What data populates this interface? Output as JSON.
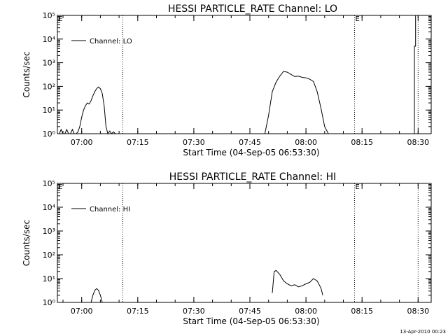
{
  "chart_data": [
    {
      "type": "line",
      "title": "HESSI PARTICLE_RATE Channel: LO",
      "xlabel": "Start Time (04-Sep-05 06:53:30)",
      "ylabel": "Counts/sec",
      "yscale": "log",
      "ylim": [
        1,
        100000
      ],
      "xlim_minutes_after_start": [
        0,
        100
      ],
      "x_ticks": [
        "07:00",
        "07:15",
        "07:30",
        "07:45",
        "08:00",
        "08:15",
        "08:30"
      ],
      "y_ticks": [
        "10⁰",
        "10¹",
        "10²",
        "10³",
        "10⁴",
        "10⁵"
      ],
      "legend": {
        "position": "top-left",
        "entries": [
          "Channel: LO"
        ]
      },
      "markers": [
        "E"
      ],
      "dotted_verticals_time": [
        "07:11",
        "08:13",
        "08:30"
      ],
      "series": [
        {
          "name": "Channel: LO",
          "segments": [
            {
              "time": [
                "06:54:00",
                "06:54:30",
                "06:55:00",
                "06:55:30",
                "06:56:00",
                "06:56:30",
                "06:57:00",
                "06:57:30",
                "06:58:00",
                "06:58:30",
                "06:59:00",
                "06:59:30",
                "07:00:00",
                "07:00:30",
                "07:01:00",
                "07:01:30",
                "07:02:00",
                "07:02:30",
                "07:03:00",
                "07:03:30",
                "07:04:00",
                "07:04:30",
                "07:05:00",
                "07:05:30",
                "07:06:00",
                "07:06:30",
                "07:07:00",
                "07:07:30",
                "07:08:00",
                "07:08:30",
                "07:09:00"
              ],
              "counts": [
                1,
                1.5,
                1,
                1,
                1.5,
                1,
                1,
                1.5,
                1,
                1,
                1.2,
                2,
                5,
                10,
                15,
                20,
                18,
                25,
                40,
                60,
                80,
                95,
                80,
                50,
                15,
                2,
                1,
                1.3,
                1,
                1.2,
                1
              ]
            },
            {
              "time": [
                "07:49:00",
                "07:50:00",
                "07:51:00",
                "07:52:00",
                "07:53:00",
                "07:54:00",
                "07:55:00",
                "07:56:00",
                "07:57:00",
                "07:58:00",
                "07:59:00",
                "08:00:00",
                "08:01:00",
                "08:02:00",
                "08:03:00",
                "08:04:00",
                "08:05:00",
                "08:06:00"
              ],
              "counts": [
                1,
                6,
                60,
                150,
                270,
                430,
                400,
                320,
                260,
                270,
                240,
                230,
                200,
                160,
                60,
                12,
                2,
                1
              ]
            },
            {
              "time": [
                "08:29:00",
                "08:29:00",
                "08:29:20",
                "08:29:20",
                "08:29:40"
              ],
              "counts": [
                1,
                5000,
                5000,
                100000,
                100000
              ]
            }
          ]
        }
      ]
    },
    {
      "type": "line",
      "title": "HESSI PARTICLE_RATE Channel: HI",
      "xlabel": "Start Time (04-Sep-05 06:53:30)",
      "ylabel": "Counts/sec",
      "yscale": "log",
      "ylim": [
        1,
        100000
      ],
      "xlim_minutes_after_start": [
        0,
        100
      ],
      "x_ticks": [
        "07:00",
        "07:15",
        "07:30",
        "07:45",
        "08:00",
        "08:15",
        "08:30"
      ],
      "y_ticks": [
        "10⁰",
        "10¹",
        "10²",
        "10³",
        "10⁴",
        "10⁵"
      ],
      "legend": {
        "position": "top-left",
        "entries": [
          "Channel: HI"
        ]
      },
      "markers": [
        "E"
      ],
      "dotted_verticals_time": [
        "07:11",
        "08:13",
        "08:30"
      ],
      "series": [
        {
          "name": "Channel: HI",
          "segments": [
            {
              "time": [
                "07:02:30",
                "07:03:00",
                "07:03:30",
                "07:04:00",
                "07:04:30",
                "07:05:00",
                "07:05:30"
              ],
              "counts": [
                1,
                2,
                3.2,
                3.8,
                3.2,
                2,
                1
              ]
            },
            {
              "time": [
                "07:51:00",
                "07:51:30",
                "07:52:00",
                "07:53:00",
                "07:54:00",
                "07:55:00",
                "07:56:00",
                "07:57:00",
                "07:58:00",
                "07:59:00",
                "08:00:00",
                "08:01:00",
                "08:02:00",
                "08:03:00",
                "08:04:00",
                "08:04:30"
              ],
              "counts": [
                2.5,
                20,
                22,
                15,
                8,
                6,
                5,
                5.5,
                4.5,
                5,
                6,
                7,
                10,
                8,
                4,
                2
              ]
            }
          ]
        }
      ]
    }
  ],
  "footer": {
    "timestamp": "13-Apr-2010 00:23"
  }
}
